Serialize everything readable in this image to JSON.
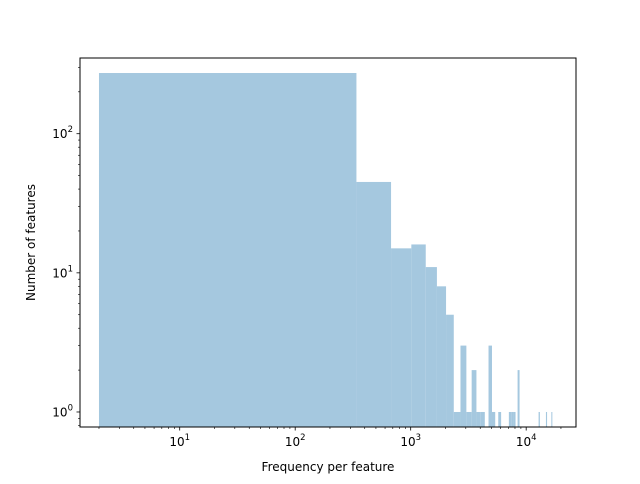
{
  "chart_data": {
    "type": "bar",
    "xlabel": "Frequency per feature",
    "ylabel": "Number of features",
    "xscale": "log",
    "yscale": "log",
    "xlim": [
      1.37,
      27000
    ],
    "ylim": [
      0.78,
      350
    ],
    "xticks": [
      {
        "value": 10,
        "base": "10",
        "exp": "1"
      },
      {
        "value": 100,
        "base": "10",
        "exp": "2"
      },
      {
        "value": 1000,
        "base": "10",
        "exp": "3"
      },
      {
        "value": 10000,
        "base": "10",
        "exp": "4"
      }
    ],
    "yticks": [
      {
        "value": 1,
        "base": "10",
        "exp": "0"
      },
      {
        "value": 10,
        "base": "10",
        "exp": "1"
      },
      {
        "value": 100,
        "base": "10",
        "exp": "2"
      }
    ],
    "bar_color": "#a5c8df",
    "bins": [
      {
        "x0": 2,
        "x1": 339,
        "count": 273
      },
      {
        "x0": 339,
        "x1": 676,
        "count": 45
      },
      {
        "x0": 676,
        "x1": 1013,
        "count": 15
      },
      {
        "x0": 1013,
        "x1": 1350,
        "count": 16
      },
      {
        "x0": 1350,
        "x1": 1687,
        "count": 11
      },
      {
        "x0": 1687,
        "x1": 2024,
        "count": 8
      },
      {
        "x0": 2024,
        "x1": 2361,
        "count": 5
      },
      {
        "x0": 2361,
        "x1": 2698,
        "count": 1
      },
      {
        "x0": 2698,
        "x1": 3035,
        "count": 3
      },
      {
        "x0": 3035,
        "x1": 3372,
        "count": 1
      },
      {
        "x0": 3372,
        "x1": 3709,
        "count": 2
      },
      {
        "x0": 3709,
        "x1": 4046,
        "count": 1
      },
      {
        "x0": 4046,
        "x1": 4383,
        "count": 1
      },
      {
        "x0": 4720,
        "x1": 5057,
        "count": 3
      },
      {
        "x0": 5057,
        "x1": 5394,
        "count": 1
      },
      {
        "x0": 5731,
        "x1": 6068,
        "count": 1
      },
      {
        "x0": 7079,
        "x1": 7416,
        "count": 1
      },
      {
        "x0": 7416,
        "x1": 7753,
        "count": 1
      },
      {
        "x0": 7753,
        "x1": 8090,
        "count": 1
      },
      {
        "x0": 8427,
        "x1": 8764,
        "count": 2
      },
      {
        "x0": 12806,
        "x1": 13143,
        "count": 1
      },
      {
        "x0": 14828,
        "x1": 15165,
        "count": 1
      },
      {
        "x0": 16513,
        "x1": 16850,
        "count": 1
      }
    ]
  }
}
